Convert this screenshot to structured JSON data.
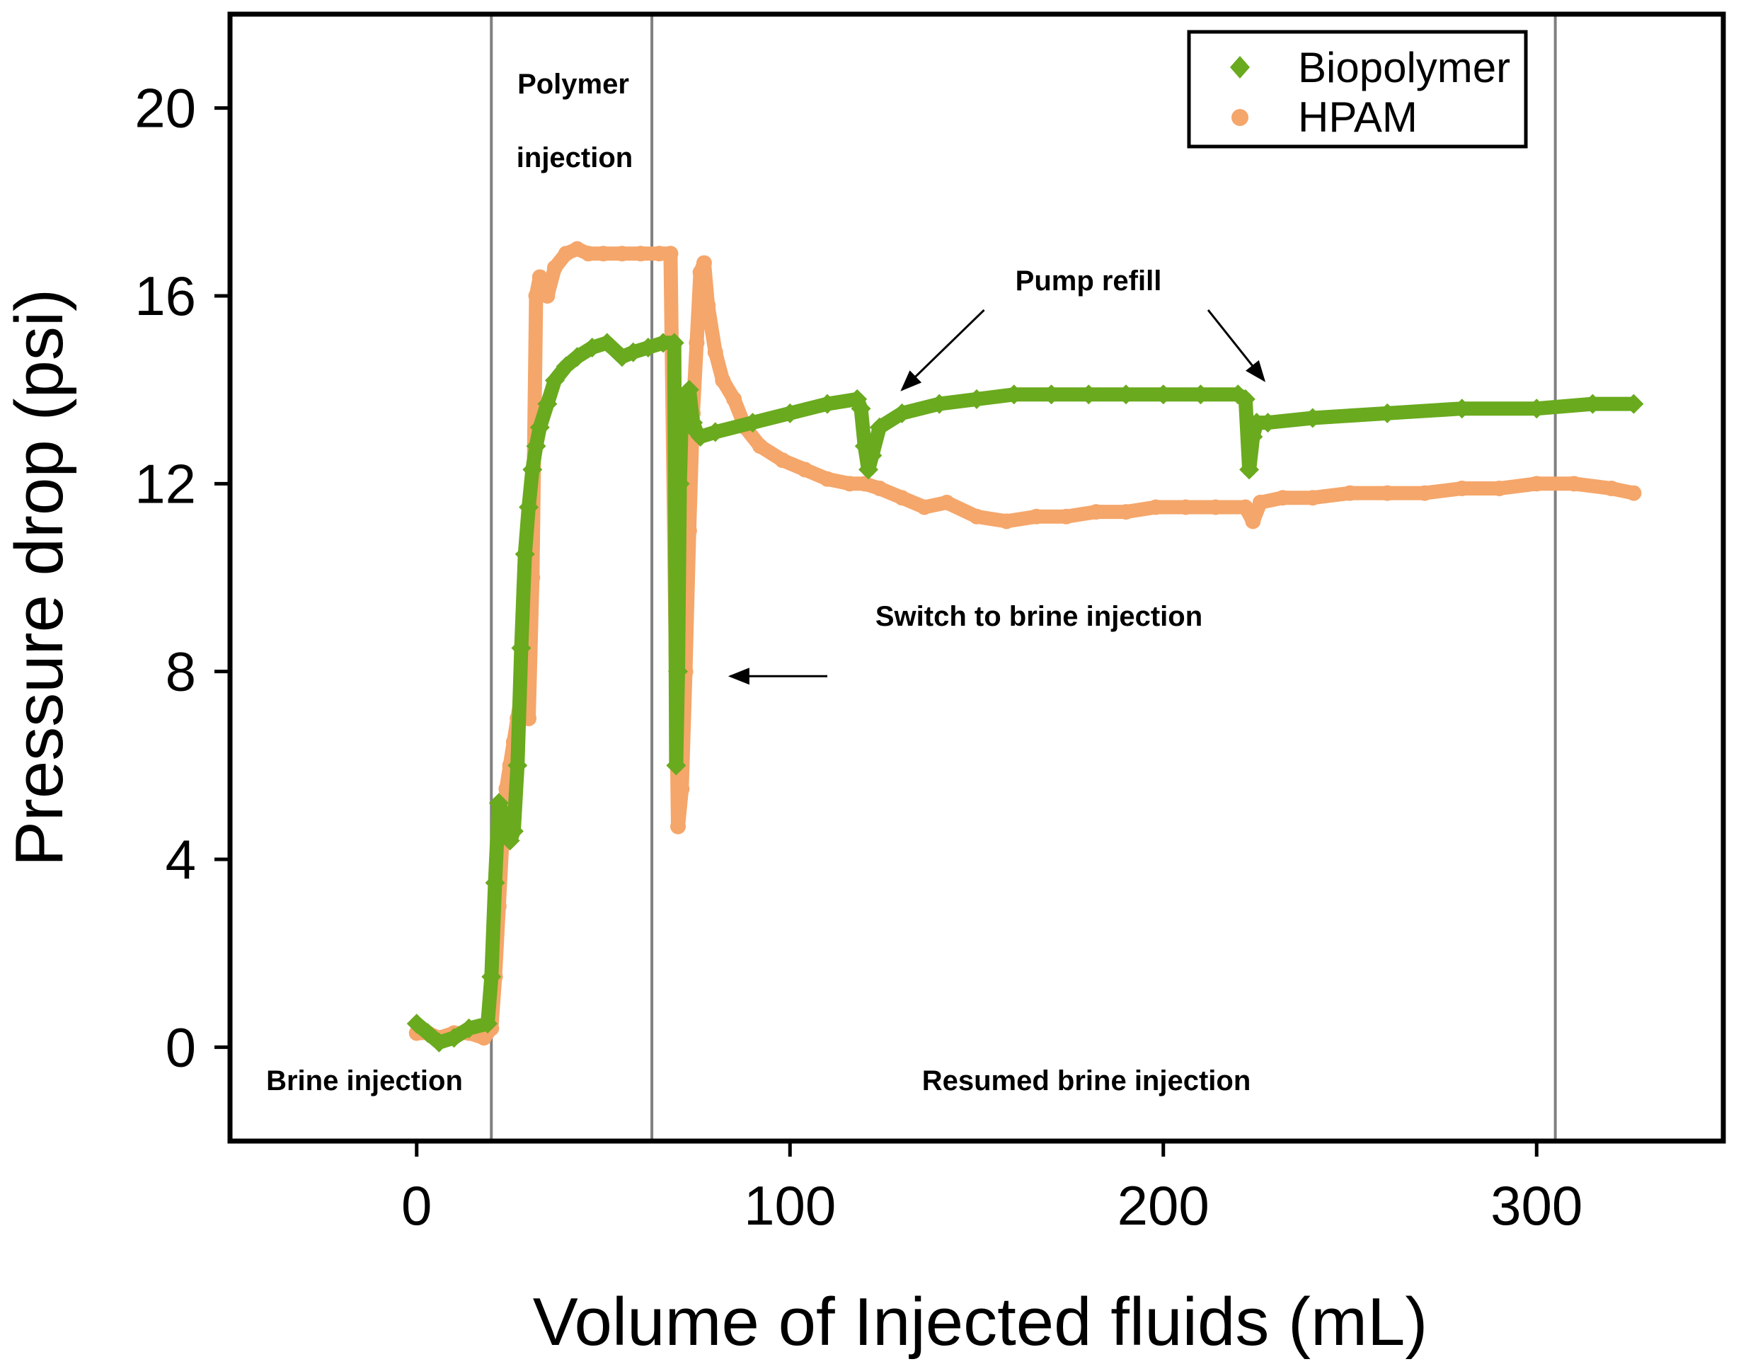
{
  "chart_data": {
    "type": "scatter",
    "title": "",
    "xlabel": "Volume of Injected fluids (mL)",
    "ylabel": "Pressure drop (psi)",
    "xlim": [
      -50,
      350
    ],
    "ylim": [
      -2,
      22
    ],
    "xticks": [
      0,
      100,
      200,
      300
    ],
    "yticks": [
      0,
      4,
      8,
      12,
      16,
      20
    ],
    "grid": false,
    "legend_position": "top-right",
    "phase_boundaries_x": [
      20,
      63,
      305
    ],
    "series": [
      {
        "name": "Biopolymer",
        "marker": "diamond",
        "color": "#6aaa1e",
        "x": [
          0,
          3,
          6,
          10,
          14,
          19,
          20,
          21,
          22,
          23,
          24,
          25,
          26,
          27,
          28,
          29,
          30,
          31,
          32,
          33,
          35,
          37,
          40,
          43,
          47,
          51,
          55,
          58,
          62,
          66,
          69,
          69.5,
          70,
          70.5,
          71,
          72,
          73,
          74,
          75,
          76,
          80,
          90,
          100,
          110,
          118,
          119,
          120,
          121,
          122,
          124,
          130,
          140,
          150,
          160,
          170,
          180,
          190,
          200,
          210,
          220,
          222,
          223,
          224,
          225,
          228,
          240,
          260,
          280,
          300,
          315,
          326
        ],
        "y": [
          0.5,
          0.3,
          0.1,
          0.2,
          0.4,
          0.5,
          1.5,
          3.5,
          5.2,
          5.0,
          4.5,
          4.4,
          4.6,
          6.0,
          8.5,
          10.5,
          11.5,
          12.3,
          12.8,
          13.2,
          13.7,
          14.2,
          14.5,
          14.7,
          14.9,
          15.0,
          14.7,
          14.8,
          14.9,
          15.0,
          15.0,
          6.0,
          8.0,
          12.0,
          13.5,
          13.8,
          14.0,
          13.3,
          13.1,
          13.0,
          13.1,
          13.3,
          13.5,
          13.7,
          13.8,
          13.6,
          12.8,
          12.3,
          12.6,
          13.2,
          13.5,
          13.7,
          13.8,
          13.9,
          13.9,
          13.9,
          13.9,
          13.9,
          13.9,
          13.9,
          13.8,
          12.3,
          13.0,
          13.3,
          13.3,
          13.4,
          13.5,
          13.6,
          13.6,
          13.7,
          13.7
        ]
      },
      {
        "name": "HPAM",
        "marker": "circle",
        "color": "#f5a66a",
        "x": [
          0,
          3,
          6,
          10,
          14,
          18,
          20,
          21,
          22,
          23,
          24,
          25,
          26,
          27,
          28,
          29,
          30,
          31,
          32,
          33,
          35,
          37,
          40,
          43,
          46,
          50,
          55,
          60,
          65,
          68,
          70,
          71,
          72,
          73,
          74,
          75,
          76,
          77,
          78,
          80,
          82,
          85,
          88,
          92,
          98,
          104,
          110,
          116,
          120,
          124,
          130,
          136,
          142,
          150,
          158,
          166,
          174,
          182,
          190,
          198,
          206,
          214,
          222,
          224,
          226,
          232,
          240,
          250,
          260,
          270,
          280,
          290,
          300,
          310,
          320,
          326
        ],
        "y": [
          0.3,
          0.3,
          0.2,
          0.3,
          0.3,
          0.2,
          0.4,
          1.5,
          3.0,
          4.5,
          5.5,
          6.0,
          6.5,
          7.0,
          7.5,
          8.5,
          7.0,
          10.0,
          16.0,
          16.4,
          16.0,
          16.6,
          16.9,
          17.0,
          16.9,
          16.9,
          16.9,
          16.9,
          16.9,
          16.9,
          4.7,
          5.5,
          8.0,
          11.0,
          13.5,
          15.0,
          16.5,
          16.7,
          15.8,
          14.8,
          14.2,
          13.8,
          13.2,
          12.8,
          12.5,
          12.3,
          12.1,
          12.0,
          12.0,
          11.9,
          11.7,
          11.5,
          11.6,
          11.3,
          11.2,
          11.3,
          11.3,
          11.4,
          11.4,
          11.5,
          11.5,
          11.5,
          11.5,
          11.2,
          11.6,
          11.7,
          11.7,
          11.8,
          11.8,
          11.8,
          11.9,
          11.9,
          12.0,
          12.0,
          11.9,
          11.8
        ]
      }
    ],
    "annotations": [
      {
        "id": "polymer-1",
        "text": "Polymer",
        "x": 42,
        "y": 20.4
      },
      {
        "id": "polymer-2",
        "text": "injection",
        "x": 42,
        "y": 18.8
      },
      {
        "id": "pump-refill",
        "text": "Pump refill",
        "x": 179,
        "y": 16.2
      },
      {
        "id": "switch-brine",
        "text": "Switch to brine injection",
        "x": 166,
        "y": 7.9
      },
      {
        "id": "brine-injection",
        "text": "Brine injection",
        "x": -14,
        "y": -0.9
      },
      {
        "id": "resumed-brine",
        "text": "Resumed brine injection",
        "x": 179,
        "y": -0.9
      }
    ],
    "arrows": [
      {
        "id": "arrow-pump-left",
        "from": [
          152,
          15.7
        ],
        "to": [
          130,
          14.0
        ]
      },
      {
        "id": "arrow-pump-right",
        "from": [
          212,
          15.7
        ],
        "to": [
          227,
          14.2
        ]
      },
      {
        "id": "arrow-switch",
        "from": [
          110,
          7.9
        ],
        "to": [
          84,
          7.9
        ]
      }
    ]
  }
}
